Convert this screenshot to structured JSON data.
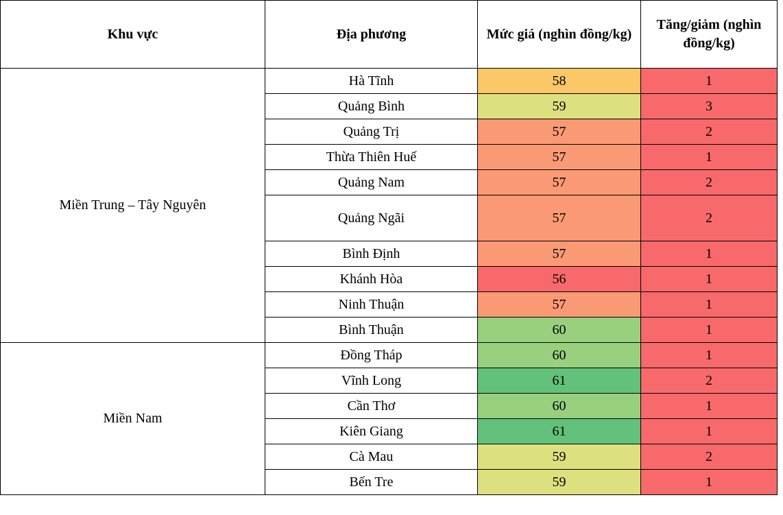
{
  "chart_data": {
    "type": "table",
    "columns": [
      "Khu vực",
      "Địa phương",
      "Mức giá (nghìn đồng/kg)",
      "Tăng/giảm (nghìn đồng/kg)"
    ],
    "regions": [
      {
        "name": "Miền Trung – Tây Nguyên",
        "rows": [
          {
            "locality": "Hà Tĩnh",
            "price": 58,
            "change": 1
          },
          {
            "locality": "Quảng Bình",
            "price": 59,
            "change": 3
          },
          {
            "locality": "Quảng Trị",
            "price": 57,
            "change": 2
          },
          {
            "locality": "Thừa Thiên Huế",
            "price": 57,
            "change": 1
          },
          {
            "locality": "Quảng Nam",
            "price": 57,
            "change": 2
          },
          {
            "locality": "Quảng Ngãi",
            "price": 57,
            "change": 2,
            "tall": true
          },
          {
            "locality": "Bình Định",
            "price": 57,
            "change": 1
          },
          {
            "locality": "Khánh Hòa",
            "price": 56,
            "change": 1
          },
          {
            "locality": "Ninh Thuận",
            "price": 57,
            "change": 1
          },
          {
            "locality": "Bình Thuận",
            "price": 60,
            "change": 1
          }
        ]
      },
      {
        "name": "Miền Nam",
        "rows": [
          {
            "locality": "Đồng Tháp",
            "price": 60,
            "change": 1
          },
          {
            "locality": "Vĩnh Long",
            "price": 61,
            "change": 2
          },
          {
            "locality": "Cần Thơ",
            "price": 60,
            "change": 1
          },
          {
            "locality": "Kiên Giang",
            "price": 61,
            "change": 1
          },
          {
            "locality": "Cà Mau",
            "price": 59,
            "change": 2
          },
          {
            "locality": "Bến Tre",
            "price": 59,
            "change": 1
          }
        ]
      }
    ]
  },
  "style": {
    "price_scale_colors": {
      "56": "#F8696B",
      "57": "#FA9A75",
      "58": "#FBC767",
      "59": "#DCE07E",
      "60": "#98D07E",
      "61": "#62C17A"
    },
    "change_cell_color": "#F8696B",
    "border_color": "#000000",
    "text_color": "#000000"
  }
}
